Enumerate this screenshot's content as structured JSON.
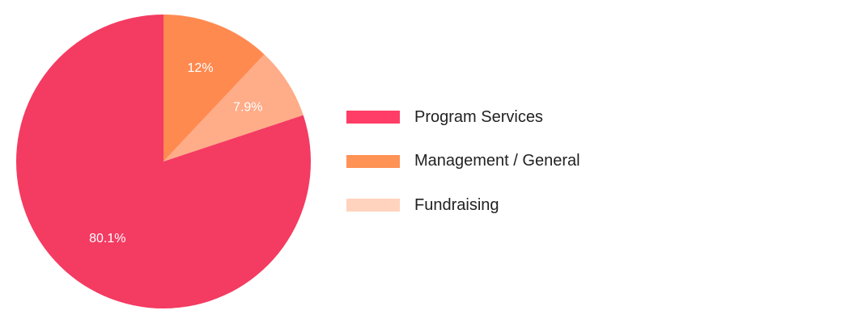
{
  "chart_data": {
    "type": "pie",
    "title": "",
    "categories": [
      "Program Services",
      "Management / General",
      "Fundraising"
    ],
    "values": [
      80.1,
      12,
      7.9
    ],
    "labels": [
      "80.1%",
      "12%",
      "7.9%"
    ],
    "colors": [
      "#f43b62",
      "#ff8a50",
      "#ffac88"
    ],
    "legend_colors": [
      "#ff3d66",
      "#ff9255",
      "#ffd3bd"
    ],
    "legend_position": "right",
    "start_angle_deg": 0,
    "direction": "clockwise"
  },
  "legend": {
    "items": [
      {
        "label": "Program Services",
        "color": "#ff3d66"
      },
      {
        "label": "Management / General",
        "color": "#ff9255"
      },
      {
        "label": "Fundraising",
        "color": "#ffd3bd"
      }
    ]
  }
}
